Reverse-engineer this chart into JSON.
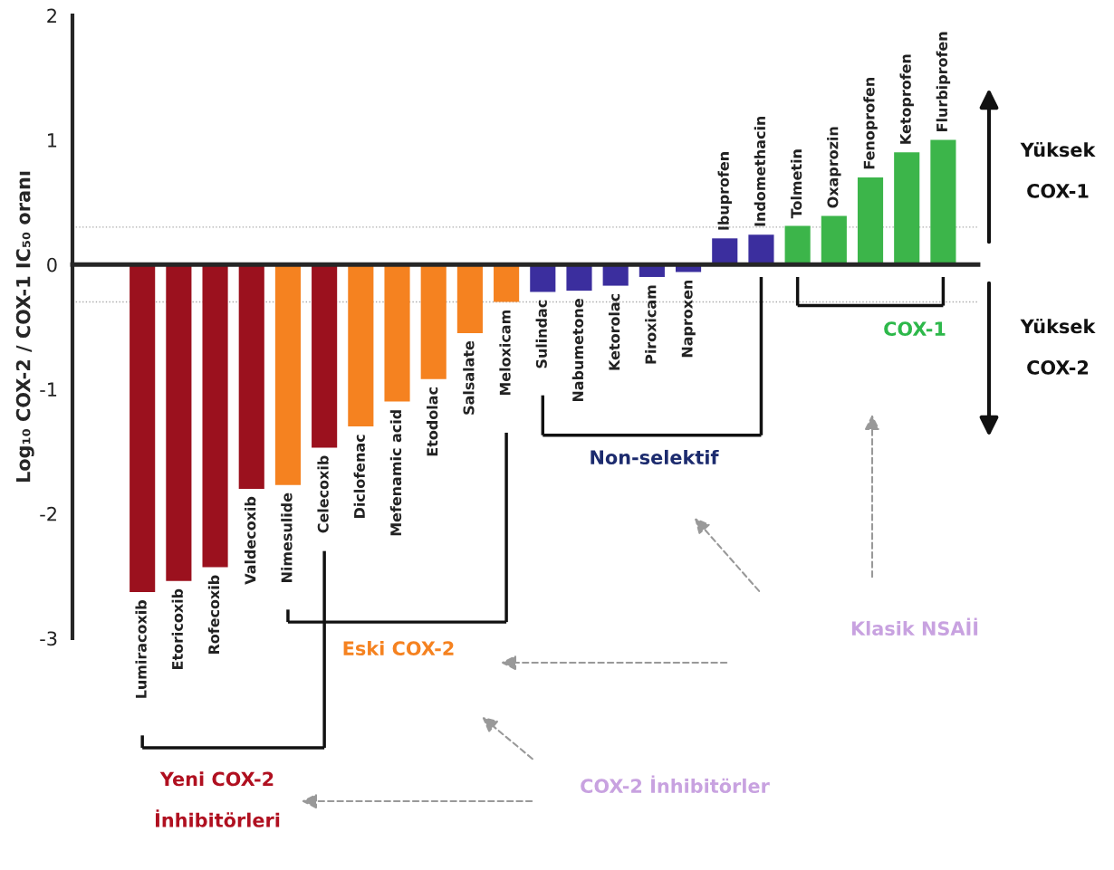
{
  "chart_data": {
    "type": "bar",
    "ylabel": "Log₁₀ COX-2 / COX-1 IC₅₀ oranı",
    "categories": [
      "Lumiracoxib",
      "Etoricoxib",
      "Rofecoxib",
      "Valdecoxib",
      "Nimesulide",
      "Celecoxib",
      "Diclofenac",
      "Mefenamic acid",
      "Etodolac",
      "Salsalate",
      "Meloxicam",
      "Sulindac",
      "Nabumetone",
      "Ketorolac",
      "Piroxicam",
      "Naproxen",
      "Ibuprofen",
      "Indomethacin",
      "Tolmetin",
      "Oxaprozin",
      "Fenoprofen",
      "Ketoprofen",
      "Flurbiprofen"
    ],
    "values": [
      -2.63,
      -2.54,
      -2.43,
      -1.8,
      -1.77,
      -1.47,
      -1.3,
      -1.1,
      -0.92,
      -0.55,
      -0.3,
      -0.22,
      -0.21,
      -0.17,
      -0.1,
      -0.06,
      0.21,
      0.24,
      0.31,
      0.39,
      0.7,
      0.9,
      1.0
    ],
    "colors": [
      "#9b111e",
      "#9b111e",
      "#9b111e",
      "#9b111e",
      "#f58220",
      "#9b111e",
      "#f58220",
      "#f58220",
      "#f58220",
      "#f58220",
      "#f58220",
      "#3b2e9e",
      "#3b2e9e",
      "#3b2e9e",
      "#3b2e9e",
      "#3b2e9e",
      "#3b2e9e",
      "#3b2e9e",
      "#3cb54a",
      "#3cb54a",
      "#3cb54a",
      "#3cb54a",
      "#3cb54a"
    ],
    "ylim": [
      -3,
      2
    ],
    "yticks": [
      -3,
      -2,
      -1,
      0,
      1,
      2
    ],
    "tick_labels": "y",
    "grid": false,
    "ref_lines": [
      {
        "axis": "y",
        "value": 0.3,
        "color": "#aaaaaa",
        "line_style": "dotted"
      },
      {
        "axis": "y",
        "value": -0.3,
        "color": "#aaaaaa",
        "line_style": "dotted"
      }
    ],
    "annotations": [
      "Yeni COX-2\nİnhibitörleri",
      "Eski COX-2",
      "Non-selektif",
      "COX-1",
      "COX-2 İnhibitörler",
      "Klasik NSAİİ",
      "Yüksek\nCOX-1",
      "Yüksek\nCOX-2"
    ]
  }
}
